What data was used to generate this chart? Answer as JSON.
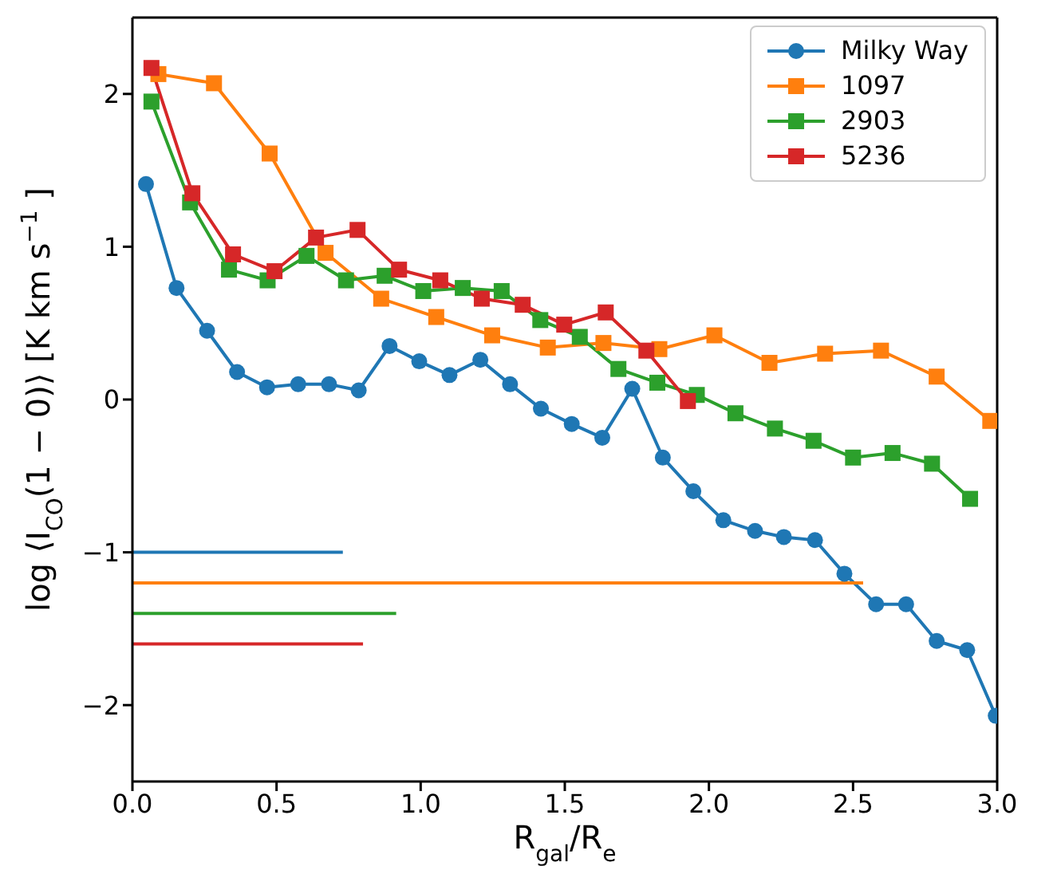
{
  "chart_data": {
    "type": "line",
    "xlabel": "R$_{gal}$/R$_{e}$",
    "ylabel": "log ⟨I$_{CO}$(1 − 0)⟩ [K km s$^{−1}$ ]",
    "xlim": [
      0,
      3
    ],
    "ylim": [
      -2.5,
      2.5
    ],
    "xticks": [
      {
        "value": 0,
        "label": "0.0"
      },
      {
        "value": 0.5,
        "label": "0.5"
      },
      {
        "value": 1,
        "label": "1.0"
      },
      {
        "value": 1.5,
        "label": "1.5"
      },
      {
        "value": 2,
        "label": "2.0"
      },
      {
        "value": 2.5,
        "label": "2.5"
      },
      {
        "value": 3,
        "label": "3.0"
      }
    ],
    "yticks": [
      {
        "value": -2,
        "label": "−2"
      },
      {
        "value": -1,
        "label": "−1"
      },
      0,
      1,
      2
    ],
    "legend": "top right",
    "line_style": "solid",
    "series": [
      {
        "name": "Milky Way",
        "color": "#1f77b4",
        "marker": "circle",
        "x": [
          0.047,
          0.153,
          0.259,
          0.363,
          0.467,
          0.575,
          0.682,
          0.785,
          0.892,
          0.995,
          1.1,
          1.207,
          1.31,
          1.417,
          1.524,
          1.63,
          1.734,
          1.84,
          1.946,
          2.05,
          2.16,
          2.26,
          2.368,
          2.47,
          2.58,
          2.684,
          2.79,
          2.896,
          2.995
        ],
        "values": [
          1.41,
          0.73,
          0.45,
          0.18,
          0.08,
          0.1,
          0.1,
          0.06,
          0.35,
          0.25,
          0.16,
          0.26,
          0.1,
          -0.06,
          -0.16,
          -0.25,
          0.07,
          -0.38,
          -0.6,
          -0.79,
          -0.86,
          -0.9,
          -0.92,
          -1.14,
          -1.34,
          -1.34,
          -1.58,
          -1.64,
          -2.07
        ]
      },
      {
        "name": "1097",
        "color": "#ff7f0e",
        "marker": "square",
        "x": [
          0.09,
          0.283,
          0.476,
          0.67,
          0.863,
          1.054,
          1.248,
          1.441,
          1.634,
          1.828,
          2.019,
          2.21,
          2.403,
          2.597,
          2.79,
          2.976
        ],
        "values": [
          2.13,
          2.07,
          1.61,
          0.96,
          0.66,
          0.54,
          0.42,
          0.34,
          0.37,
          0.33,
          0.42,
          0.24,
          0.3,
          0.32,
          0.15,
          -0.14
        ]
      },
      {
        "name": "2903",
        "color": "#2ca02c",
        "marker": "square",
        "x": [
          0.066,
          0.2,
          0.335,
          0.469,
          0.604,
          0.741,
          0.875,
          1.009,
          1.146,
          1.281,
          1.415,
          1.552,
          1.686,
          1.821,
          1.958,
          2.092,
          2.229,
          2.363,
          2.5,
          2.637,
          2.774,
          2.906
        ],
        "values": [
          1.95,
          1.29,
          0.85,
          0.78,
          0.94,
          0.78,
          0.81,
          0.71,
          0.73,
          0.71,
          0.52,
          0.41,
          0.2,
          0.11,
          0.03,
          -0.09,
          -0.19,
          -0.27,
          -0.38,
          -0.35,
          -0.42,
          -0.65
        ]
      },
      {
        "name": "5236",
        "color": "#d62728",
        "marker": "square",
        "x": [
          0.066,
          0.208,
          0.349,
          0.493,
          0.637,
          0.781,
          0.925,
          1.068,
          1.212,
          1.354,
          1.498,
          1.642,
          1.783,
          1.927
        ],
        "values": [
          2.17,
          1.35,
          0.95,
          0.84,
          1.06,
          1.11,
          0.85,
          0.78,
          0.66,
          0.62,
          0.49,
          0.57,
          0.32,
          -0.01
        ]
      },
      {
        "color": "#1f77b4",
        "marker": "none",
        "x": [
          0,
          0.73
        ],
        "values": [
          -1,
          -1
        ]
      },
      {
        "color": "#ff7f0e",
        "marker": "none",
        "x": [
          0,
          2.535
        ],
        "values": [
          -1.2,
          -1.2
        ]
      },
      {
        "color": "#2ca02c",
        "marker": "none",
        "x": [
          0,
          0.915
        ],
        "values": [
          -1.4,
          -1.4
        ]
      },
      {
        "color": "#d62728",
        "marker": "none",
        "x": [
          0,
          0.8
        ],
        "values": [
          -1.6,
          -1.6
        ]
      }
    ]
  }
}
